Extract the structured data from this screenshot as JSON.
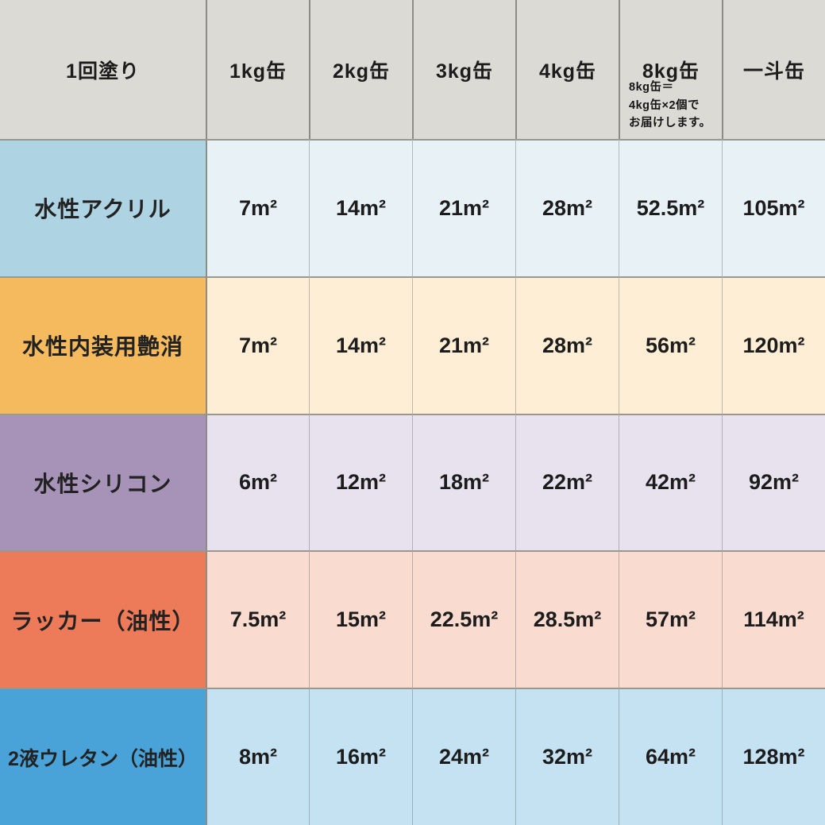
{
  "table": {
    "header": {
      "row_label": "1回塗り",
      "columns": [
        "1kg缶",
        "2kg缶",
        "3kg缶",
        "4kg缶",
        "8kg缶",
        "一斗缶"
      ],
      "note_lines": [
        "8kg缶＝",
        "4kg缶×2個で",
        "お届けします。"
      ]
    },
    "rows": [
      {
        "label": "水性アクリル",
        "label_bg": "#aed3e3",
        "cell_bg": "#e8f1f6",
        "cells": [
          "7m²",
          "14m²",
          "21m²",
          "28m²",
          "52.5m²",
          "105m²"
        ]
      },
      {
        "label": "水性内装用艶消",
        "label_bg": "#f6ba5e",
        "cell_bg": "#fdeed5",
        "cells": [
          "7m²",
          "14m²",
          "21m²",
          "28m²",
          "56m²",
          "120m²"
        ]
      },
      {
        "label": "水性シリコン",
        "label_bg": "#a893b8",
        "cell_bg": "#e8e2ee",
        "cells": [
          "6m²",
          "12m²",
          "18m²",
          "22m²",
          "42m²",
          "92m²"
        ]
      },
      {
        "label": "ラッカー（油性）",
        "label_bg": "#ed7a58",
        "cell_bg": "#f9dbcf",
        "cells": [
          "7.5m²",
          "15m²",
          "22.5m²",
          "28.5m²",
          "57m²",
          "114m²"
        ]
      },
      {
        "label": "2液ウレタン（油性）",
        "label_bg": "#49a3d9",
        "cell_bg": "#c5e2f3",
        "cells": [
          "8m²",
          "16m²",
          "24m²",
          "32m²",
          "64m²",
          "128m²"
        ]
      }
    ],
    "colors": {
      "header_bg": "#dcdad5",
      "grid_line": "#98988f",
      "column_line": "#8d8d87",
      "text": "#1c1c1c"
    }
  },
  "chart_data": {
    "type": "table",
    "title": "1回塗り",
    "categories": [
      "1kg缶",
      "2kg缶",
      "3kg缶",
      "4kg缶",
      "8kg缶",
      "一斗缶"
    ],
    "series": [
      {
        "name": "水性アクリル",
        "values": [
          7,
          14,
          21,
          28,
          52.5,
          105
        ]
      },
      {
        "name": "水性内装用艶消",
        "values": [
          7,
          14,
          21,
          28,
          56,
          120
        ]
      },
      {
        "name": "水性シリコン",
        "values": [
          6,
          12,
          18,
          22,
          42,
          92
        ]
      },
      {
        "name": "ラッカー（油性）",
        "values": [
          7.5,
          15,
          22.5,
          28.5,
          57,
          114
        ]
      },
      {
        "name": "2液ウレタン（油性）",
        "values": [
          8,
          16,
          24,
          32,
          64,
          128
        ]
      }
    ],
    "unit": "㎡",
    "note": "8kg缶＝4kg缶×2個でお届けします。"
  }
}
